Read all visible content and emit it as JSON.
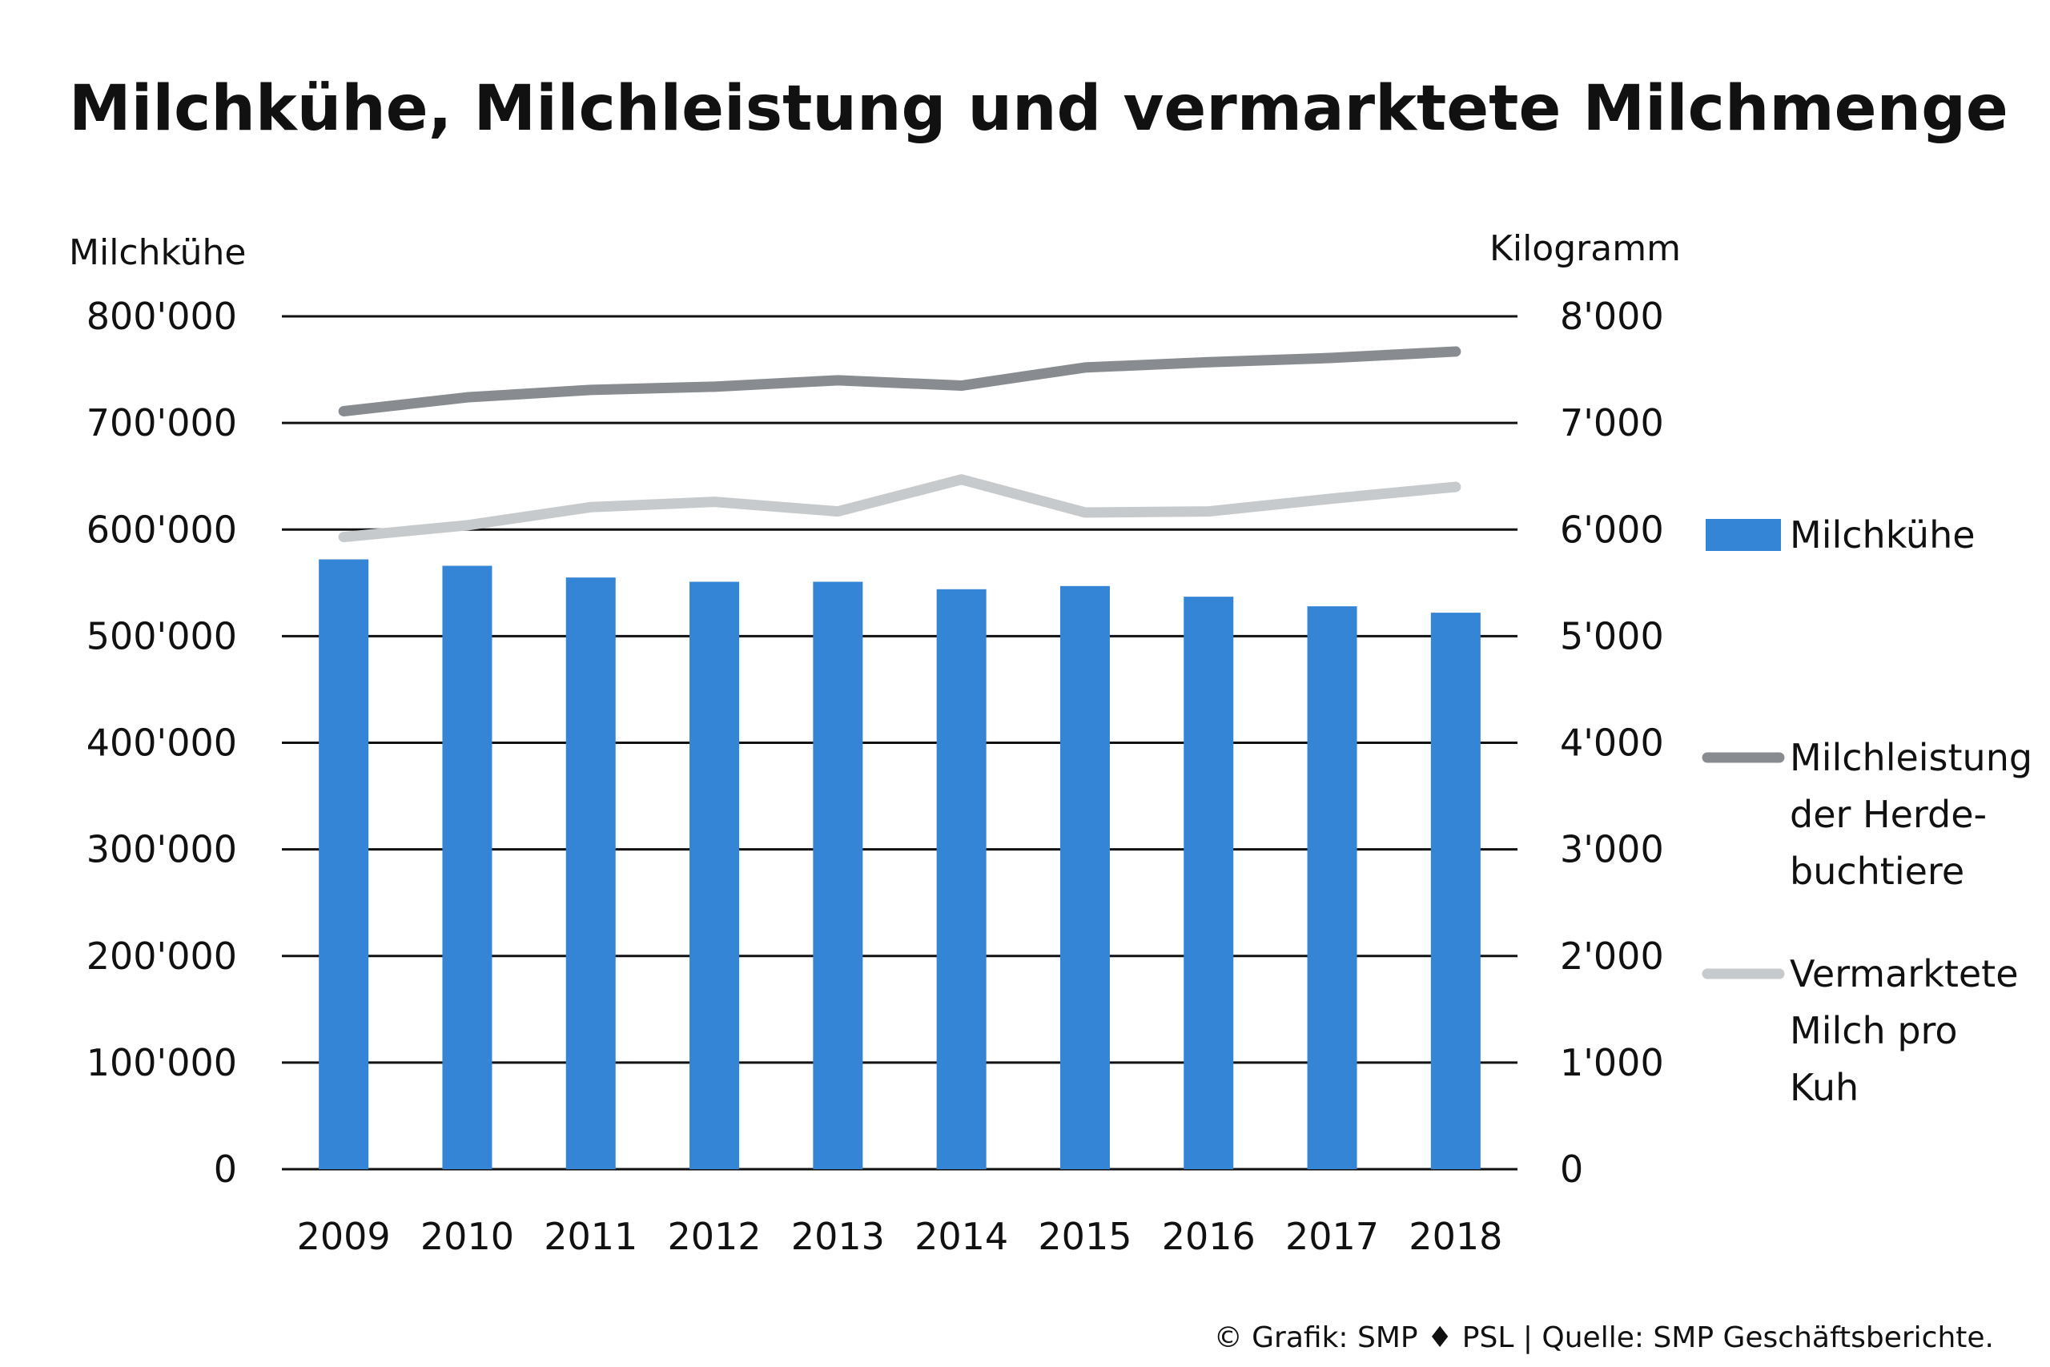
{
  "chart_data": {
    "type": "bar",
    "title": "Milchkühe, Milchleistung und vermarktete Milchmenge",
    "ylabel_left": "Milchkühe",
    "ylabel_right": "Kilogramm",
    "categories": [
      "2009",
      "2010",
      "2011",
      "2012",
      "2013",
      "2014",
      "2015",
      "2016",
      "2017",
      "2018"
    ],
    "y_left_ticks": [
      "0",
      "100'000",
      "200'000",
      "300'000",
      "400'000",
      "500'000",
      "600'000",
      "700'000",
      "800'000"
    ],
    "y_right_ticks": [
      "0",
      "1'000",
      "2'000",
      "3'000",
      "4'000",
      "5'000",
      "6'000",
      "7'000",
      "8'000"
    ],
    "ylim_left": [
      0,
      800000
    ],
    "ylim_right": [
      0,
      8000
    ],
    "grid": true,
    "legend_position": "right",
    "series": [
      {
        "name": "Milchkühe",
        "type": "bar",
        "axis": "left",
        "color": "#3585d6",
        "values": [
          572000,
          566000,
          555000,
          551000,
          551000,
          544000,
          547000,
          537000,
          528000,
          522000
        ]
      },
      {
        "name": "Milchleistung der Herde-buchtiere",
        "name_lines": [
          "Milchleistung",
          "der Herde-",
          "buchtiere"
        ],
        "type": "line",
        "axis": "right",
        "color": "#888c90",
        "values": [
          7110,
          7240,
          7310,
          7340,
          7400,
          7350,
          7520,
          7570,
          7610,
          7670
        ]
      },
      {
        "name": "Vermarktete Milch pro Kuh",
        "name_lines": [
          "Vermarktete",
          "Milch pro",
          "Kuh"
        ],
        "type": "line",
        "axis": "right",
        "color": "#c7cacc",
        "values": [
          5930,
          6040,
          6210,
          6260,
          6170,
          6470,
          6160,
          6170,
          6290,
          6400
        ]
      }
    ]
  },
  "footer": {
    "source": "© Grafik: SMP ♦ PSL | Quelle: SMP Geschäftsberichte."
  }
}
